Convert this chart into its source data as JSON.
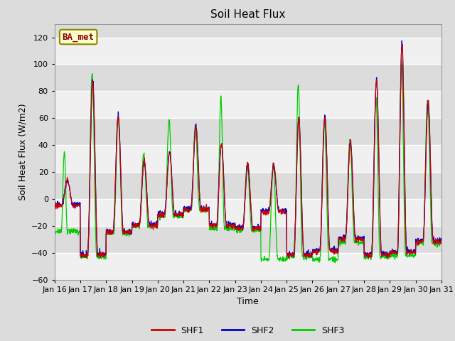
{
  "title": "Soil Heat Flux",
  "ylabel": "Soil Heat Flux (W/m2)",
  "xlabel": "Time",
  "ylim": [
    -60,
    130
  ],
  "yticks": [
    -60,
    -40,
    -20,
    0,
    20,
    40,
    60,
    80,
    100,
    120
  ],
  "bg_color": "#dcdcdc",
  "grid_color": "#ffffff",
  "series_colors": [
    "#cc0000",
    "#0000cc",
    "#00cc00"
  ],
  "series_names": [
    "SHF1",
    "SHF2",
    "SHF3"
  ],
  "annotation_text": "BA_met",
  "annotation_bg": "#ffffcc",
  "annotation_border": "#888800",
  "n_days": 15,
  "start_day": 16,
  "points_per_day": 96,
  "title_fontsize": 11,
  "label_fontsize": 9,
  "tick_fontsize": 8
}
